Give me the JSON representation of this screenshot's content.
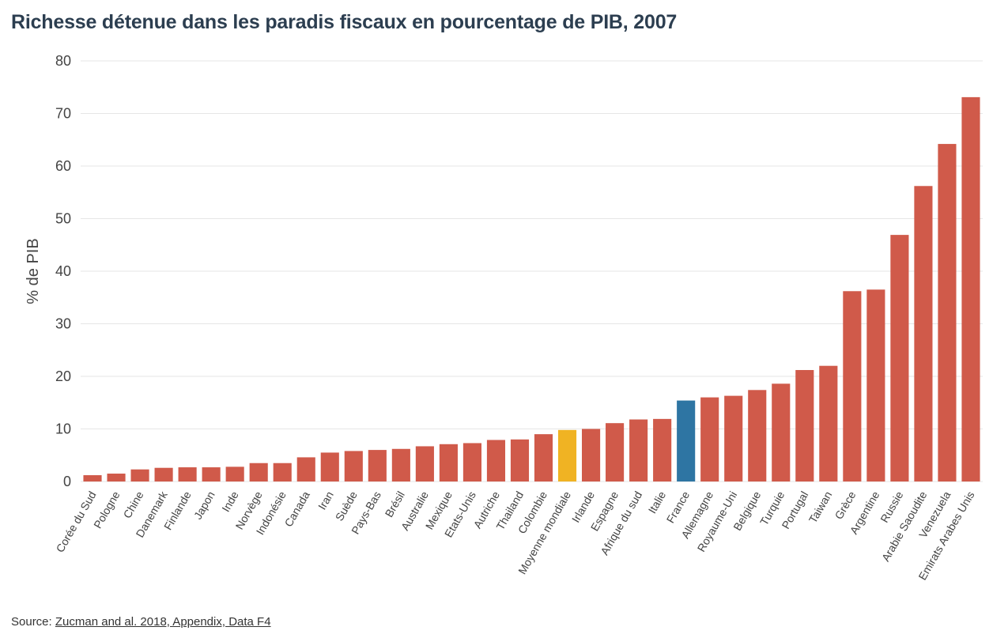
{
  "title": "Richesse détenue dans les paradis fiscaux en pourcentage de PIB, 2007",
  "source": {
    "prefix": "Source: ",
    "link_text": "Zucman and al. 2018, Appendix, Data F4"
  },
  "colors": {
    "default": "#d05a4a",
    "world_average": "#f0b323",
    "france": "#2e75a3",
    "grid": "#e6e6e6"
  },
  "chart_data": {
    "type": "bar",
    "title": "Richesse détenue dans les paradis fiscaux en pourcentage de PIB, 2007",
    "xlabel": "",
    "ylabel": "% de PIB",
    "ylim": [
      0,
      80
    ],
    "yticks": [
      0,
      10,
      20,
      30,
      40,
      50,
      60,
      70,
      80
    ],
    "grid": true,
    "categories": [
      "Corée du Sud",
      "Pologne",
      "Chine",
      "Danemark",
      "Finlande",
      "Japon",
      "Inde",
      "Norvège",
      "Indonésie",
      "Canada",
      "Iran",
      "Suède",
      "Pays-Bas",
      "Brésil",
      "Australie",
      "Mexique",
      "Etats-Unis",
      "Autriche",
      "Thailand",
      "Colombie",
      "Moyenne mondiale",
      "Irlande",
      "Espagne",
      "Afrique du sud",
      "Italie",
      "France",
      "Allemagne",
      "Royaume-Uni",
      "Belgique",
      "Turquie",
      "Portugal",
      "Taiwan",
      "Grèce",
      "Argentine",
      "Russie",
      "Arabie Saoudite",
      "Venezuela",
      "Emirats Arabes Unis"
    ],
    "values": [
      1.2,
      1.5,
      2.3,
      2.6,
      2.7,
      2.7,
      2.8,
      3.5,
      3.5,
      4.6,
      5.5,
      5.8,
      6.0,
      6.2,
      6.7,
      7.1,
      7.3,
      7.9,
      8.0,
      9.0,
      9.8,
      10.0,
      11.1,
      11.8,
      11.9,
      15.4,
      16.0,
      16.3,
      17.4,
      18.6,
      21.2,
      22.0,
      36.2,
      36.5,
      46.9,
      56.2,
      64.2,
      73.1
    ],
    "highlight": {
      "Moyenne mondiale": "world_average",
      "France": "france"
    }
  }
}
